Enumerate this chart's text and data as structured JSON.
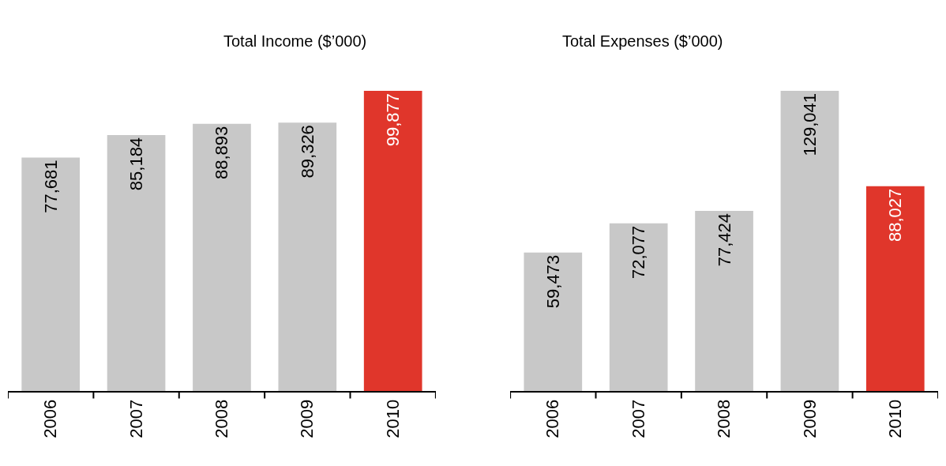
{
  "chart_data": [
    {
      "type": "bar",
      "title": "Total Income ($’000)",
      "categories": [
        "2006",
        "2007",
        "2008",
        "2009",
        "2010"
      ],
      "values": [
        77681,
        85184,
        88893,
        89326,
        99877
      ],
      "value_labels": [
        "77,681",
        "85,184",
        "88,893",
        "89,326",
        "99,877"
      ],
      "colors": [
        "#c8c8c8",
        "#c8c8c8",
        "#c8c8c8",
        "#c8c8c8",
        "#e0362b"
      ],
      "tick_labels": "x"
    },
    {
      "type": "bar",
      "title": "Total Expenses ($’000)",
      "categories": [
        "2006",
        "2007",
        "2008",
        "2009",
        "2010"
      ],
      "values": [
        59473,
        72077,
        77424,
        129041,
        88027
      ],
      "value_labels": [
        "59,473",
        "72,077",
        "77,424",
        "129,041",
        "88,027"
      ],
      "colors": [
        "#c8c8c8",
        "#c8c8c8",
        "#c8c8c8",
        "#c8c8c8",
        "#e0362b"
      ],
      "tick_labels": "x"
    }
  ]
}
